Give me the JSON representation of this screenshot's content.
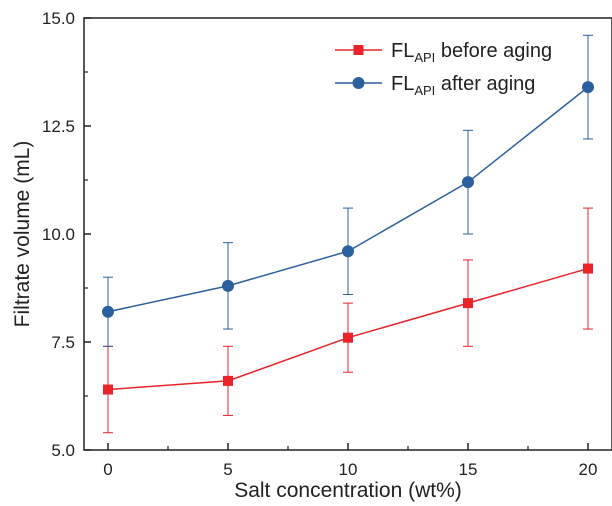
{
  "chart_data": {
    "type": "line",
    "xlabel": "Salt concentration (wt%)",
    "ylabel": "Filtrate volume (mL)",
    "x": [
      0,
      5,
      10,
      15,
      20
    ],
    "xlim": [
      -1,
      21
    ],
    "ylim": [
      5.0,
      15.0
    ],
    "xticks": [
      "0",
      "5",
      "10",
      "15",
      "20"
    ],
    "yticks": [
      "5.0",
      "7.5",
      "10.0",
      "12.5",
      "15.0"
    ],
    "grid": false,
    "legend_position": "top-right",
    "series": [
      {
        "name_main": "FL",
        "name_sub": "API",
        "name_suffix": " before aging",
        "marker": "square",
        "color": "#e8232a",
        "values": [
          6.4,
          6.6,
          7.6,
          8.4,
          9.2
        ],
        "error": [
          1.0,
          0.8,
          0.8,
          1.0,
          1.4
        ]
      },
      {
        "name_main": "FL",
        "name_sub": "API",
        "name_suffix": " after aging",
        "marker": "circle",
        "color": "#2c5f9e",
        "values": [
          8.2,
          8.8,
          9.6,
          11.2,
          13.4
        ],
        "error": [
          0.8,
          1.0,
          1.0,
          1.2,
          1.2
        ]
      }
    ]
  }
}
